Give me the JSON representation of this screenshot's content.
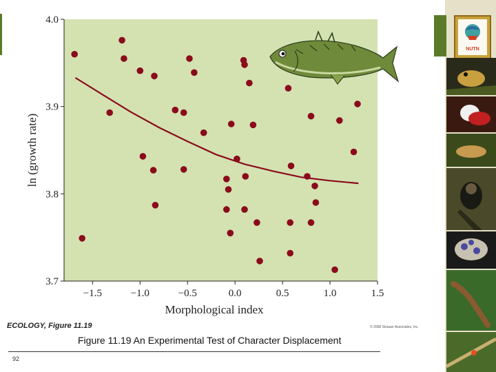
{
  "chart_data": {
    "type": "scatter",
    "title": "",
    "xlabel": "Morphological index",
    "ylabel": "ln (growth rate)",
    "xlim": [
      -1.8,
      1.5
    ],
    "ylim": [
      3.7,
      4.0
    ],
    "x_ticks": [
      -1.5,
      -1.0,
      -0.5,
      0.0,
      0.5,
      1.0,
      1.5
    ],
    "x_tick_labels": [
      "−1.5",
      "−1.0",
      "−0.5",
      "0.0",
      "0.5",
      "1.0",
      "1.5"
    ],
    "y_ticks": [
      3.7,
      3.8,
      3.9,
      4.0
    ],
    "y_tick_labels": [
      "3.7",
      "3.8",
      "3.9",
      "4.0"
    ],
    "points": [
      {
        "x": -1.69,
        "y": 3.96
      },
      {
        "x": -1.61,
        "y": 3.749
      },
      {
        "x": -1.32,
        "y": 3.893
      },
      {
        "x": -1.19,
        "y": 3.976
      },
      {
        "x": -1.17,
        "y": 3.955
      },
      {
        "x": -1.0,
        "y": 3.941
      },
      {
        "x": -0.97,
        "y": 3.843
      },
      {
        "x": -0.86,
        "y": 3.827
      },
      {
        "x": -0.85,
        "y": 3.935
      },
      {
        "x": -0.84,
        "y": 3.787
      },
      {
        "x": -0.63,
        "y": 3.896
      },
      {
        "x": -0.54,
        "y": 3.893
      },
      {
        "x": -0.54,
        "y": 3.828
      },
      {
        "x": -0.48,
        "y": 3.955
      },
      {
        "x": -0.43,
        "y": 3.939
      },
      {
        "x": -0.33,
        "y": 3.87
      },
      {
        "x": -0.09,
        "y": 3.817
      },
      {
        "x": -0.09,
        "y": 3.782
      },
      {
        "x": -0.07,
        "y": 3.805
      },
      {
        "x": -0.05,
        "y": 3.755
      },
      {
        "x": -0.04,
        "y": 3.88
      },
      {
        "x": 0.02,
        "y": 3.84
      },
      {
        "x": 0.09,
        "y": 3.953
      },
      {
        "x": 0.1,
        "y": 3.948
      },
      {
        "x": 0.1,
        "y": 3.782
      },
      {
        "x": 0.11,
        "y": 3.82
      },
      {
        "x": 0.15,
        "y": 3.927
      },
      {
        "x": 0.19,
        "y": 3.879
      },
      {
        "x": 0.23,
        "y": 3.767
      },
      {
        "x": 0.26,
        "y": 3.723
      },
      {
        "x": 0.56,
        "y": 3.921
      },
      {
        "x": 0.58,
        "y": 3.767
      },
      {
        "x": 0.58,
        "y": 3.732
      },
      {
        "x": 0.59,
        "y": 3.832
      },
      {
        "x": 0.76,
        "y": 3.82
      },
      {
        "x": 0.8,
        "y": 3.889
      },
      {
        "x": 0.8,
        "y": 3.767
      },
      {
        "x": 0.84,
        "y": 3.809
      },
      {
        "x": 0.85,
        "y": 3.79
      },
      {
        "x": 1.05,
        "y": 3.713
      },
      {
        "x": 1.1,
        "y": 3.884
      },
      {
        "x": 1.25,
        "y": 3.848
      },
      {
        "x": 1.29,
        "y": 3.903
      }
    ],
    "trend_line": {
      "x": [
        -1.68,
        -1.4,
        -1.1,
        -0.8,
        -0.5,
        -0.2,
        0.1,
        0.4,
        0.7,
        1.0,
        1.3
      ],
      "y": [
        3.933,
        3.914,
        3.894,
        3.876,
        3.86,
        3.845,
        3.834,
        3.826,
        3.819,
        3.815,
        3.812
      ]
    },
    "grid": false,
    "background": "#d3e2b0",
    "point_color": "#8b0a1c",
    "line_color": "#8b0a1c"
  },
  "credit": "ECOLOGY, Figure 11.19",
  "copyright": "© 2008 Sinauer Associates, Inc.",
  "caption": "Figure 11.19 An Experimental Test of Character Displacement",
  "page_number": "92",
  "logo_text": "NUTN"
}
